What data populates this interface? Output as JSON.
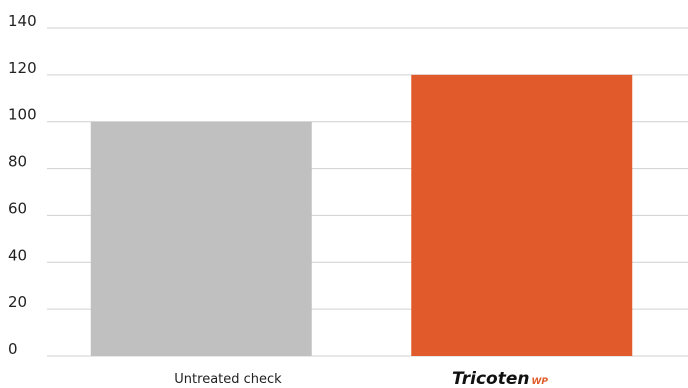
{
  "chart_data": {
    "type": "bar",
    "categories": [
      "Untreated check",
      "Tricoten WP"
    ],
    "values": [
      100,
      120
    ],
    "ylim": [
      0,
      140
    ],
    "yticks": [
      0,
      20,
      40,
      60,
      80,
      100,
      120,
      140
    ],
    "grid": true,
    "legend": "none",
    "colors": [
      "#c0c0c0",
      "#e05a2b"
    ]
  },
  "brand": {
    "name": "Tricoten",
    "suffix": "WP",
    "suffix_color": "#e05a2b"
  }
}
